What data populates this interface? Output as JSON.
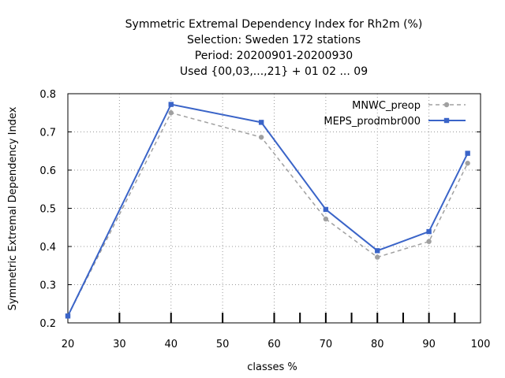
{
  "chart_data": {
    "type": "line",
    "title_lines": [
      "Symmetric Extremal Dependency Index  for Rh2m (%)",
      "Selection: Sweden     172 stations",
      "Period: 20200901-20200930",
      "Used {00,03,...,21} + 01 02 ... 09"
    ],
    "xlabel": "classes %",
    "ylabel": "Symmetric Extremal Dependency Index",
    "xlim": [
      20,
      100
    ],
    "ylim": [
      0.2,
      0.8
    ],
    "x_ticks": [
      "20",
      "30",
      "40",
      "50",
      "60",
      "70",
      "80",
      "90",
      "100"
    ],
    "y_ticks": [
      "0.2",
      "0.3",
      "0.4",
      "0.5",
      "0.6",
      "0.7",
      "0.8"
    ],
    "minor_x_ticks": [
      30,
      40,
      50,
      60,
      65,
      70,
      75,
      80,
      85,
      90,
      95
    ],
    "grid": true,
    "legend_position": "top-right",
    "series": [
      {
        "name": "MNWC_preop",
        "color": "#a0a0a0",
        "dash": true,
        "marker": "circle",
        "x": [
          20,
          40,
          57.5,
          70,
          80,
          90,
          97.5
        ],
        "y": [
          0.218,
          0.75,
          0.686,
          0.472,
          0.372,
          0.413,
          0.618
        ]
      },
      {
        "name": "MEPS_prodmbr000",
        "color": "#3a64c8",
        "dash": false,
        "marker": "square",
        "x": [
          20,
          40,
          57.5,
          70,
          80,
          90,
          97.5
        ],
        "y": [
          0.218,
          0.772,
          0.725,
          0.497,
          0.389,
          0.439,
          0.644
        ]
      }
    ]
  }
}
